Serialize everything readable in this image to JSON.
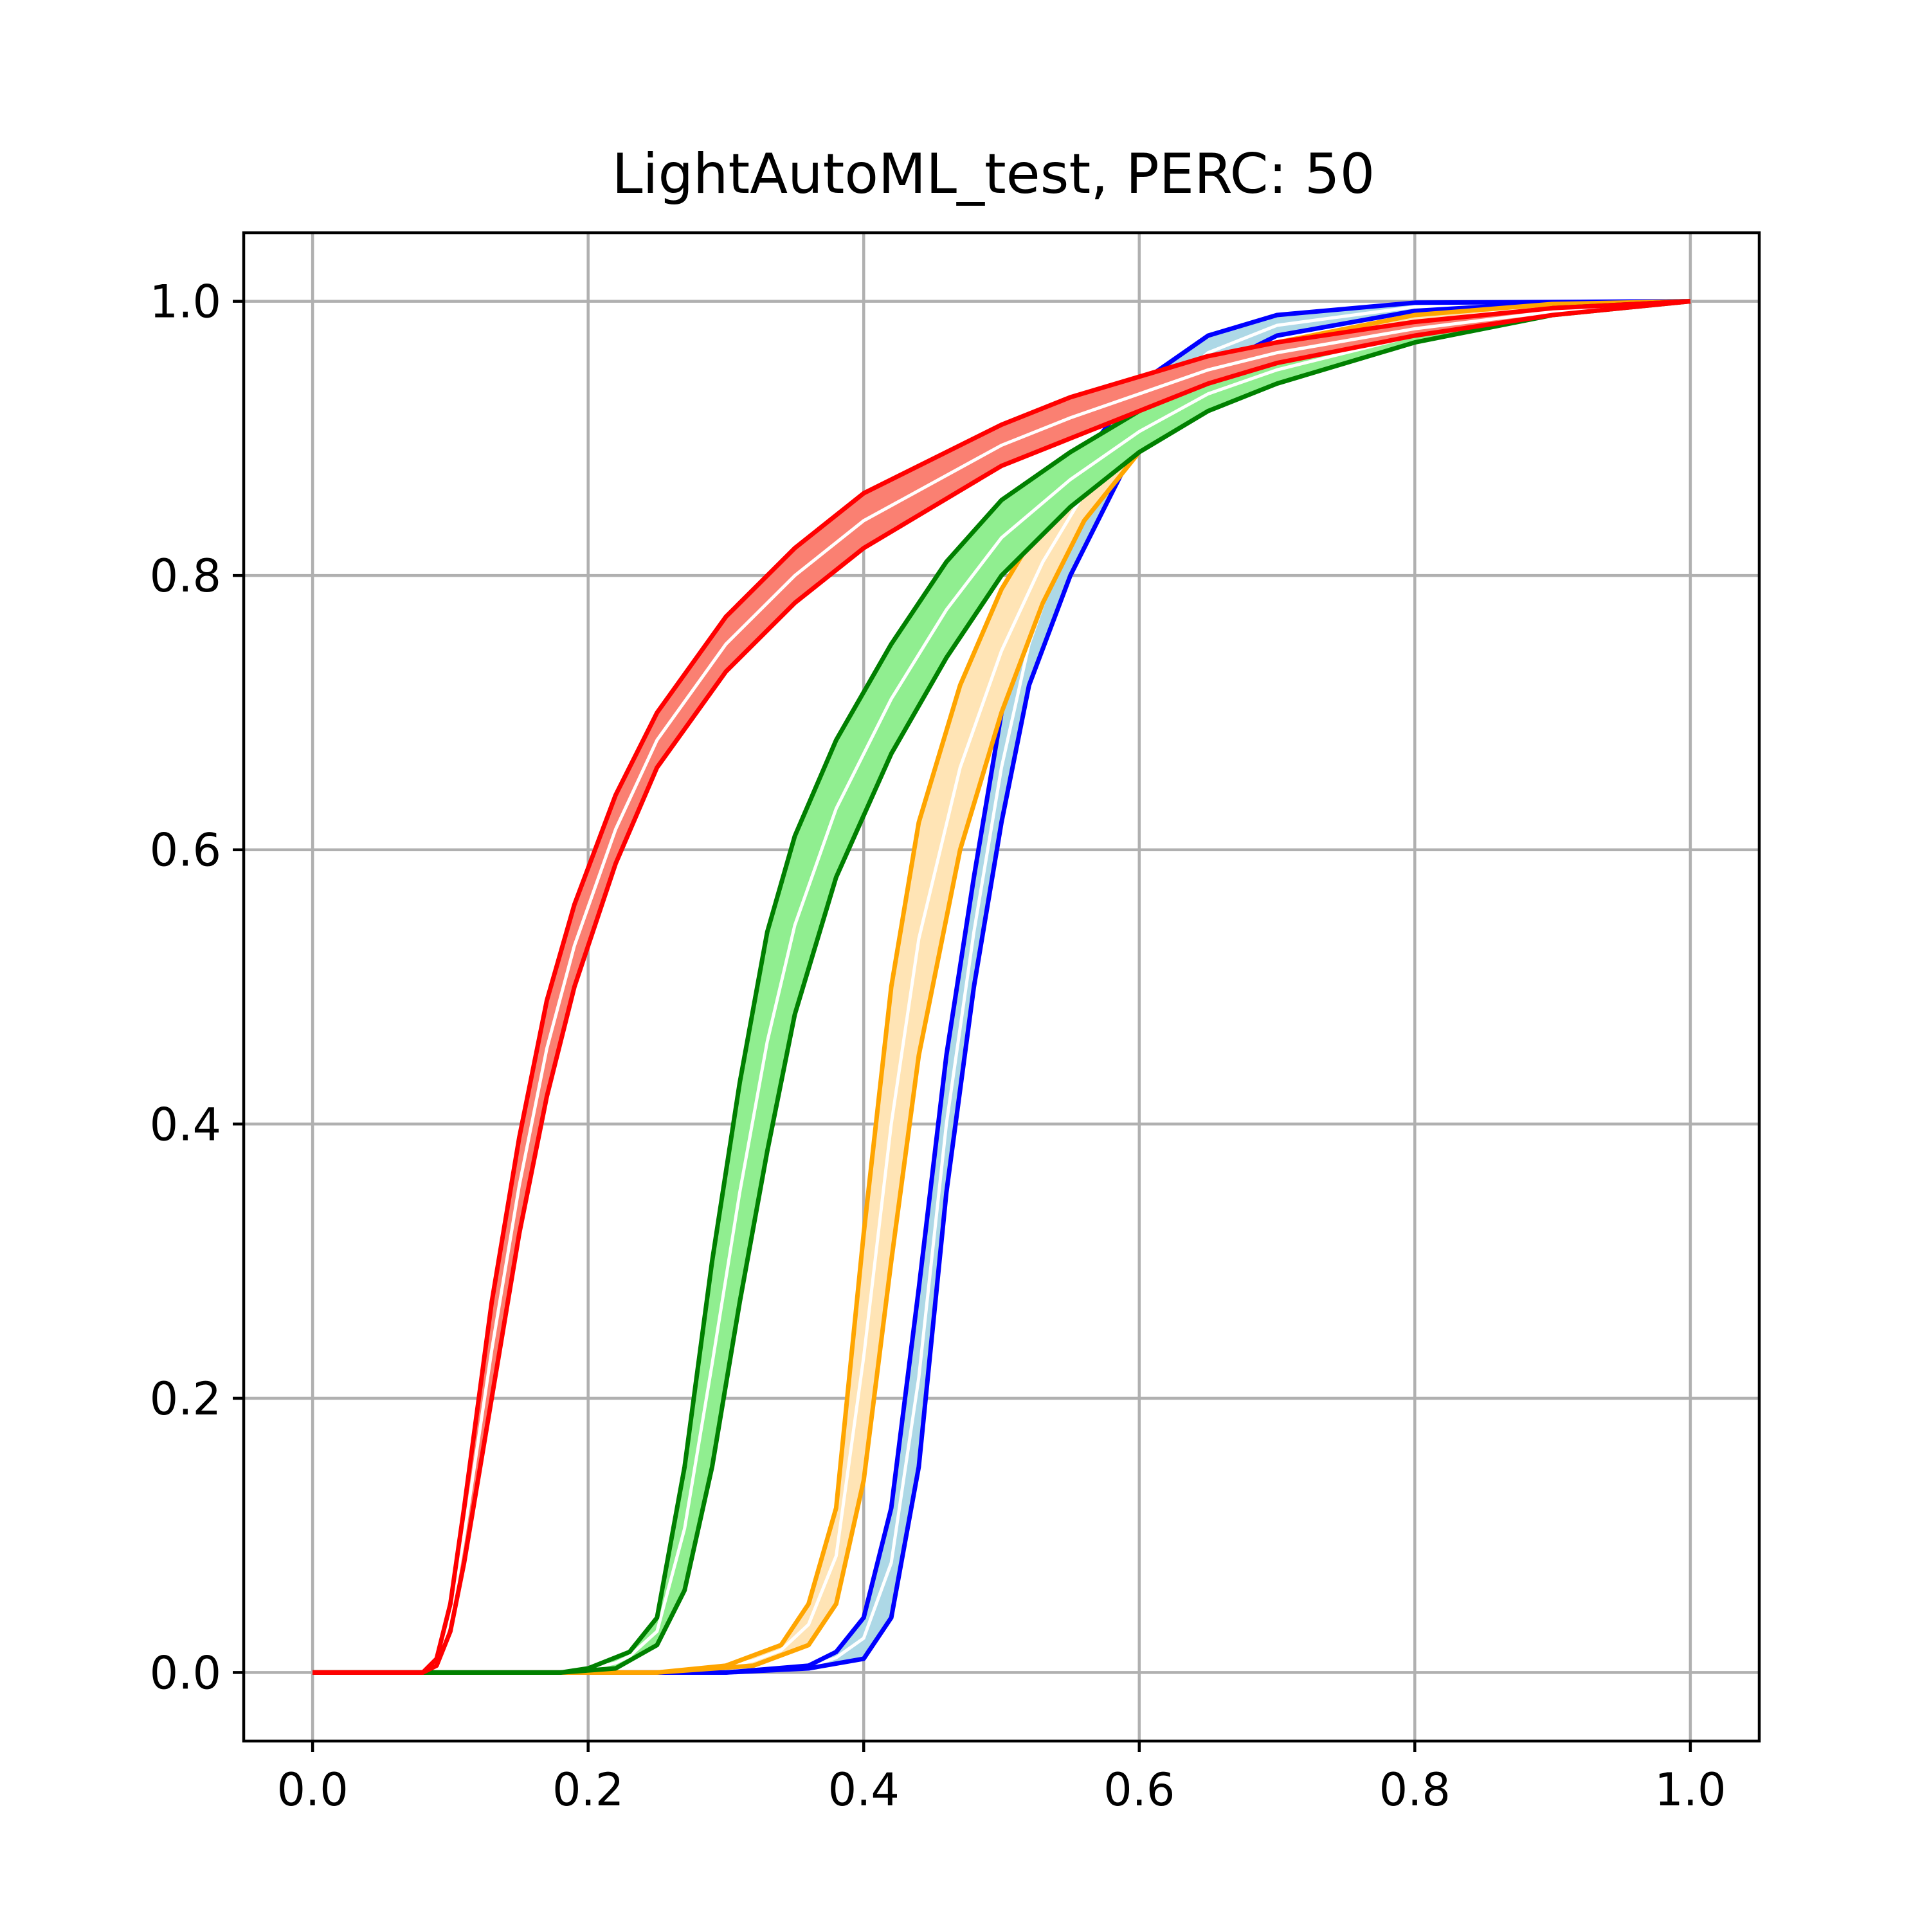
{
  "chart_data": {
    "type": "area",
    "title": "LightAutoML_test, PERC: 50",
    "xlabel": "",
    "ylabel": "",
    "xlim": [
      -0.05,
      1.05
    ],
    "ylim": [
      -0.05,
      1.05
    ],
    "x_ticks": [
      "0.0",
      "0.2",
      "0.4",
      "0.6",
      "0.8",
      "1.0"
    ],
    "y_ticks": [
      "0.0",
      "0.2",
      "0.4",
      "0.6",
      "0.8",
      "1.0"
    ],
    "grid": true,
    "legend": null,
    "series": [
      {
        "color": "#0000ff",
        "fill": "#add8e6",
        "lower": [
          [
            0.0,
            0
          ],
          [
            0.3,
            0.0
          ],
          [
            0.36,
            0.003
          ],
          [
            0.4,
            0.01
          ],
          [
            0.42,
            0.04
          ],
          [
            0.44,
            0.15
          ],
          [
            0.46,
            0.35
          ],
          [
            0.48,
            0.5
          ],
          [
            0.5,
            0.62
          ],
          [
            0.52,
            0.72
          ],
          [
            0.55,
            0.8
          ],
          [
            0.58,
            0.86
          ],
          [
            0.6,
            0.9
          ],
          [
            0.65,
            0.95
          ],
          [
            0.7,
            0.975
          ],
          [
            0.8,
            0.993
          ],
          [
            0.9,
            0.999
          ],
          [
            1.0,
            1.0
          ]
        ],
        "upper": [
          [
            0.0,
            0
          ],
          [
            0.3,
            0.0
          ],
          [
            0.36,
            0.005
          ],
          [
            0.38,
            0.015
          ],
          [
            0.4,
            0.04
          ],
          [
            0.42,
            0.12
          ],
          [
            0.44,
            0.28
          ],
          [
            0.46,
            0.45
          ],
          [
            0.48,
            0.58
          ],
          [
            0.5,
            0.7
          ],
          [
            0.52,
            0.78
          ],
          [
            0.54,
            0.84
          ],
          [
            0.57,
            0.9
          ],
          [
            0.6,
            0.94
          ],
          [
            0.65,
            0.975
          ],
          [
            0.7,
            0.99
          ],
          [
            0.8,
            0.999
          ],
          [
            1.0,
            1.0
          ]
        ]
      },
      {
        "color": "#ffa500",
        "fill": "#ffe4b5",
        "lower": [
          [
            0.0,
            0
          ],
          [
            0.25,
            0.0
          ],
          [
            0.32,
            0.005
          ],
          [
            0.36,
            0.02
          ],
          [
            0.38,
            0.05
          ],
          [
            0.4,
            0.14
          ],
          [
            0.42,
            0.3
          ],
          [
            0.44,
            0.45
          ],
          [
            0.47,
            0.6
          ],
          [
            0.5,
            0.7
          ],
          [
            0.53,
            0.78
          ],
          [
            0.56,
            0.84
          ],
          [
            0.6,
            0.89
          ],
          [
            0.65,
            0.93
          ],
          [
            0.7,
            0.955
          ],
          [
            0.8,
            0.98
          ],
          [
            0.9,
            0.995
          ],
          [
            1.0,
            1.0
          ]
        ],
        "upper": [
          [
            0.0,
            0
          ],
          [
            0.25,
            0.0
          ],
          [
            0.3,
            0.005
          ],
          [
            0.34,
            0.02
          ],
          [
            0.36,
            0.05
          ],
          [
            0.38,
            0.12
          ],
          [
            0.4,
            0.32
          ],
          [
            0.42,
            0.5
          ],
          [
            0.44,
            0.62
          ],
          [
            0.47,
            0.72
          ],
          [
            0.5,
            0.79
          ],
          [
            0.53,
            0.84
          ],
          [
            0.56,
            0.88
          ],
          [
            0.6,
            0.92
          ],
          [
            0.65,
            0.95
          ],
          [
            0.7,
            0.97
          ],
          [
            0.8,
            0.99
          ],
          [
            0.9,
            0.998
          ],
          [
            1.0,
            1.0
          ]
        ]
      },
      {
        "color": "#008000",
        "fill": "#90ee90",
        "lower": [
          [
            0.0,
            0
          ],
          [
            0.18,
            0.0
          ],
          [
            0.22,
            0.003
          ],
          [
            0.25,
            0.02
          ],
          [
            0.27,
            0.06
          ],
          [
            0.29,
            0.15
          ],
          [
            0.31,
            0.27
          ],
          [
            0.33,
            0.38
          ],
          [
            0.35,
            0.48
          ],
          [
            0.38,
            0.58
          ],
          [
            0.42,
            0.67
          ],
          [
            0.46,
            0.74
          ],
          [
            0.5,
            0.8
          ],
          [
            0.55,
            0.85
          ],
          [
            0.6,
            0.89
          ],
          [
            0.65,
            0.92
          ],
          [
            0.7,
            0.94
          ],
          [
            0.8,
            0.97
          ],
          [
            0.9,
            0.99
          ],
          [
            1.0,
            1.0
          ]
        ],
        "upper": [
          [
            0.0,
            0
          ],
          [
            0.18,
            0.0
          ],
          [
            0.2,
            0.003
          ],
          [
            0.23,
            0.015
          ],
          [
            0.25,
            0.04
          ],
          [
            0.27,
            0.15
          ],
          [
            0.29,
            0.3
          ],
          [
            0.31,
            0.43
          ],
          [
            0.33,
            0.54
          ],
          [
            0.35,
            0.61
          ],
          [
            0.38,
            0.68
          ],
          [
            0.42,
            0.75
          ],
          [
            0.46,
            0.81
          ],
          [
            0.5,
            0.855
          ],
          [
            0.55,
            0.89
          ],
          [
            0.6,
            0.92
          ],
          [
            0.65,
            0.945
          ],
          [
            0.7,
            0.96
          ],
          [
            0.8,
            0.98
          ],
          [
            0.9,
            0.995
          ],
          [
            1.0,
            1.0
          ]
        ]
      },
      {
        "color": "#ff0000",
        "fill": "#fa8072",
        "lower": [
          [
            0.0,
            0
          ],
          [
            0.08,
            0.0
          ],
          [
            0.09,
            0.005
          ],
          [
            0.1,
            0.03
          ],
          [
            0.11,
            0.08
          ],
          [
            0.13,
            0.2
          ],
          [
            0.15,
            0.32
          ],
          [
            0.17,
            0.42
          ],
          [
            0.19,
            0.5
          ],
          [
            0.22,
            0.59
          ],
          [
            0.25,
            0.66
          ],
          [
            0.3,
            0.73
          ],
          [
            0.35,
            0.78
          ],
          [
            0.4,
            0.82
          ],
          [
            0.45,
            0.85
          ],
          [
            0.5,
            0.88
          ],
          [
            0.55,
            0.9
          ],
          [
            0.6,
            0.92
          ],
          [
            0.65,
            0.94
          ],
          [
            0.7,
            0.955
          ],
          [
            0.8,
            0.975
          ],
          [
            0.9,
            0.99
          ],
          [
            1.0,
            1.0
          ]
        ],
        "upper": [
          [
            0.0,
            0
          ],
          [
            0.08,
            0.0
          ],
          [
            0.09,
            0.01
          ],
          [
            0.1,
            0.05
          ],
          [
            0.11,
            0.12
          ],
          [
            0.13,
            0.27
          ],
          [
            0.15,
            0.39
          ],
          [
            0.17,
            0.49
          ],
          [
            0.19,
            0.56
          ],
          [
            0.22,
            0.64
          ],
          [
            0.25,
            0.7
          ],
          [
            0.3,
            0.77
          ],
          [
            0.35,
            0.82
          ],
          [
            0.4,
            0.86
          ],
          [
            0.45,
            0.885
          ],
          [
            0.5,
            0.91
          ],
          [
            0.55,
            0.93
          ],
          [
            0.6,
            0.945
          ],
          [
            0.65,
            0.96
          ],
          [
            0.7,
            0.97
          ],
          [
            0.8,
            0.985
          ],
          [
            0.9,
            0.995
          ],
          [
            1.0,
            1.0
          ]
        ]
      }
    ]
  }
}
